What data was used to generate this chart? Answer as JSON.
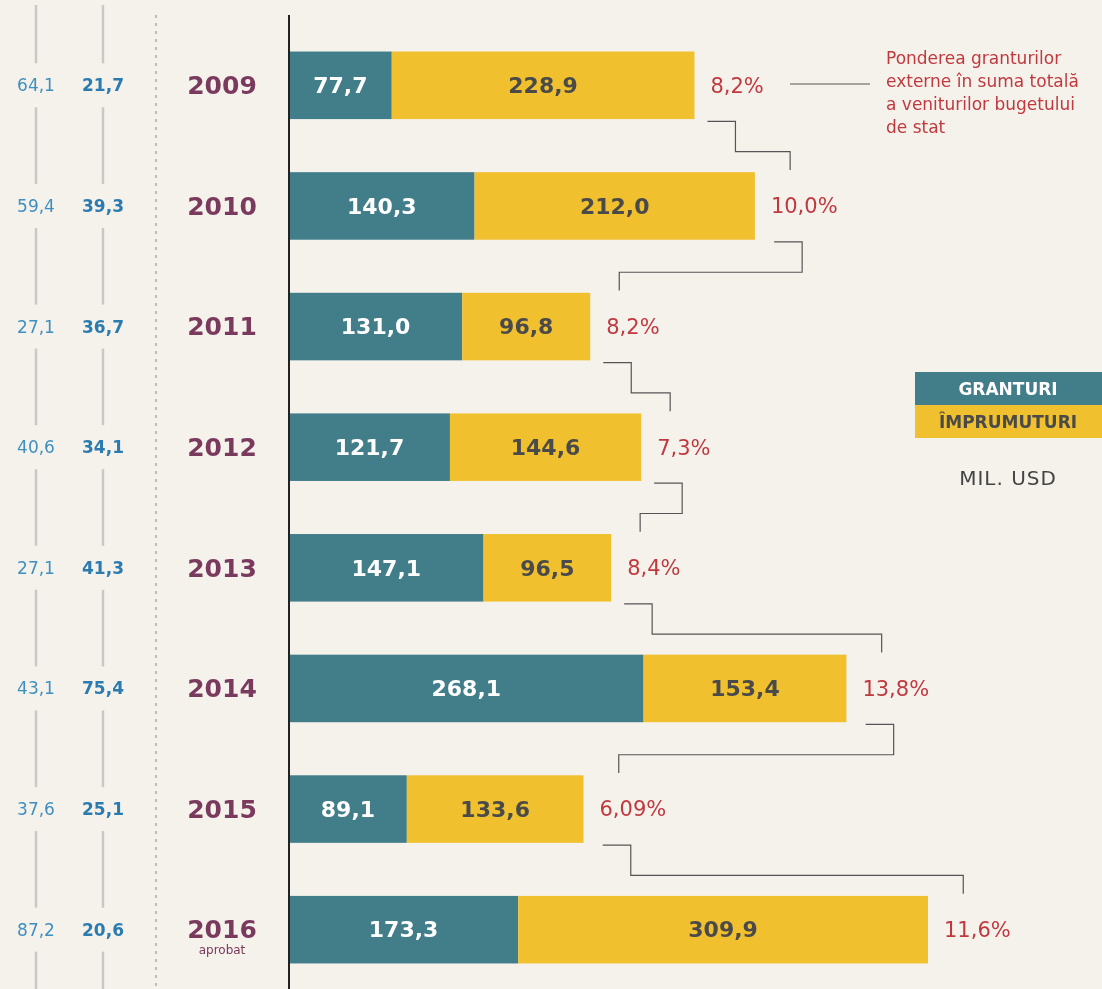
{
  "chart_data": {
    "type": "bar",
    "orientation": "horizontal",
    "stacked": true,
    "tick_labels": "y",
    "legend": "right",
    "categories": [
      "2009",
      "2010",
      "2011",
      "2012",
      "2013",
      "2014",
      "2015",
      "2016"
    ],
    "series": [
      {
        "name": "GRANTURI",
        "color": "#427d8a",
        "values": [
          77.7,
          140.3,
          131.0,
          121.7,
          147.1,
          268.1,
          89.1,
          173.3
        ],
        "value_labels": [
          "77,7",
          "140,3",
          "131,0",
          "121,7",
          "147,1",
          "268,1",
          "89,1",
          "173,3"
        ]
      },
      {
        "name": "ÎMPRUMUTURI",
        "color": "#f0c02f",
        "values": [
          228.9,
          212.0,
          96.8,
          144.6,
          96.5,
          153.4,
          133.6,
          309.9
        ],
        "value_labels": [
          "228,9",
          "212,0",
          "96,8",
          "144,6",
          "96,5",
          "153,4",
          "133,6",
          "309,9"
        ]
      }
    ],
    "annotations": [
      "Ponderea granturilor externe în suma totală a veniturilor bugetului de stat",
      "MIL. USD",
      "aprobat",
      "64,1",
      "21,7",
      "59,4",
      "39,3",
      "27,1",
      "36,7",
      "40,6",
      "34,1",
      "27,1",
      "41,3",
      "43,1",
      "75,4",
      "37,6",
      "25,1",
      "87,2",
      "20,6",
      {
        "text": "8,2%",
        "x": 306.6,
        "y": "2009"
      },
      {
        "text": "10,0%",
        "x": 352.3,
        "y": "2010"
      },
      {
        "text": "8,2%",
        "x": 227.8,
        "y": "2011"
      },
      {
        "text": "7,3%",
        "x": 266.3,
        "y": "2012"
      },
      {
        "text": "8,4%",
        "x": 243.6,
        "y": "2013"
      },
      {
        "text": "13,8%",
        "x": 421.5,
        "y": "2014"
      },
      {
        "text": "6,09%",
        "x": 222.7,
        "y": "2015"
      },
      {
        "text": "11,6%",
        "x": 483.2,
        "y": "2016"
      }
    ]
  }
}
